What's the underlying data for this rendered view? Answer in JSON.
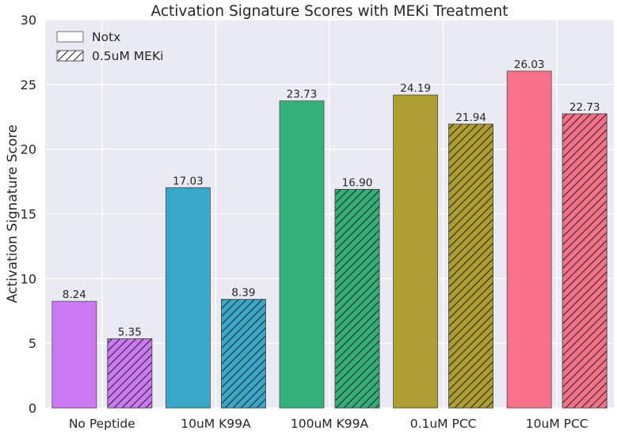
{
  "chart_data": {
    "type": "bar",
    "title": "Activation Signature Scores with MEKi Treatment",
    "xlabel": "",
    "ylabel": "Activation Signature Score",
    "ylim": [
      0,
      30
    ],
    "yticks": [
      0,
      5,
      10,
      15,
      20,
      25,
      30
    ],
    "grid": true,
    "legend_position": "top-left",
    "categories": [
      "No Peptide",
      "10uM K99A",
      "100uM K99A",
      "0.1uM PCC",
      "10uM PCC"
    ],
    "category_colors": [
      "#cc79f4",
      "#39a7c8",
      "#33b07a",
      "#ae9d31",
      "#f77189"
    ],
    "series": [
      {
        "name": "Notx",
        "hatch": false,
        "values": [
          8.24,
          17.03,
          23.73,
          24.19,
          26.03
        ],
        "labels": [
          "8.24",
          "17.03",
          "23.73",
          "24.19",
          "26.03"
        ]
      },
      {
        "name": "0.5uM MEKi",
        "hatch": true,
        "values": [
          5.35,
          8.39,
          16.9,
          21.94,
          22.73
        ],
        "labels": [
          "5.35",
          "8.39",
          "16.90",
          "21.94",
          "22.73"
        ]
      }
    ],
    "colors": {
      "plot_background": "#eaeaf2",
      "grid": "#ffffff",
      "text": "#262626",
      "bar_edge": "#4d4d4d"
    }
  }
}
